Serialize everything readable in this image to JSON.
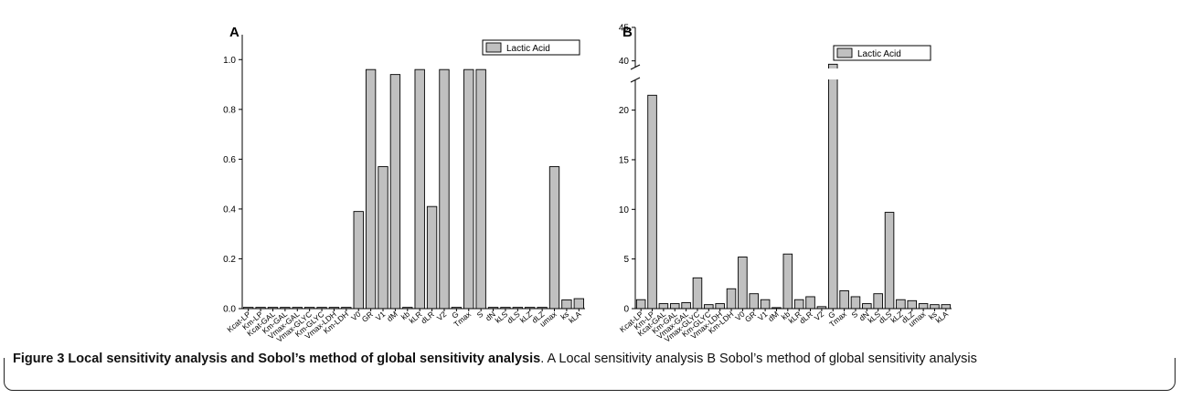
{
  "caption": {
    "title": "Figure 3 Local sensitivity analysis and Sobol’s method of global sensitivity analysis",
    "text": ". A Local sensitivity analysis B Sobol’s method of global sensitivity analysis"
  },
  "colors": {
    "bar": "#c0c0c0",
    "axis": "#000000"
  },
  "chart_data": [
    {
      "type": "bar",
      "panel_label": "A",
      "title": "",
      "xlabel": "",
      "ylabel": "",
      "ylim": [
        0,
        1.1
      ],
      "yticks": [
        "0.0",
        "0.2",
        "0.4",
        "0.6",
        "0.8",
        "1.0"
      ],
      "legend": "top-right",
      "categories": [
        "Kcat-LP",
        "Km-LP",
        "Kcat-GAL",
        "Km-GAL",
        "Vmax-GAL",
        "Vmax-GLYC",
        "Km-GLYC",
        "Vmax-LDH",
        "Km-LDH",
        "V0",
        "GR",
        "V1",
        "dM",
        "kb",
        "kLR",
        "dLR",
        "V2",
        "G",
        "Tmax",
        "S",
        "dN",
        "kLS",
        "dLS",
        "kLZ",
        "dLZ",
        "umax",
        "ks",
        "kLA"
      ],
      "series": [
        {
          "name": "Lactic Acid",
          "values": [
            0.005,
            0.005,
            0.005,
            0.005,
            0.005,
            0.005,
            0.005,
            0.005,
            0.005,
            0.39,
            0.96,
            0.57,
            0.94,
            0.005,
            0.96,
            0.41,
            0.96,
            0.005,
            0.96,
            0.96,
            0.005,
            0.005,
            0.005,
            0.005,
            0.005,
            0.57,
            0.035,
            0.04
          ]
        }
      ]
    },
    {
      "type": "bar",
      "panel_label": "B",
      "title": "",
      "xlabel": "",
      "ylabel": "",
      "ylim": [
        0,
        45
      ],
      "axis_break": [
        23,
        39
      ],
      "yticks": [
        "0",
        "5",
        "10",
        "15",
        "20",
        "40",
        "45"
      ],
      "legend": "top-right",
      "categories": [
        "Kcat-LP",
        "Km-LP",
        "Kcat-GAL",
        "Km-GAL",
        "Vmax-GAL",
        "Vmax-GLYC",
        "Km-GLYC",
        "Vmax-LDH",
        "Km-LDH",
        "V0",
        "GR",
        "V1",
        "dM",
        "kb",
        "kLR",
        "dLR",
        "V2",
        "G",
        "Tmax",
        "S",
        "dN",
        "kLS",
        "dLS",
        "kLZ",
        "dLZ",
        "umax",
        "ks",
        "kLA"
      ],
      "series": [
        {
          "name": "Lactic Acid",
          "values": [
            0.9,
            21.5,
            0.5,
            0.5,
            0.6,
            3.1,
            0.4,
            0.5,
            2.0,
            5.2,
            1.5,
            0.9,
            0.1,
            5.5,
            0.9,
            1.2,
            0.2,
            39.5,
            1.8,
            1.2,
            0.5,
            1.5,
            9.7,
            0.9,
            0.8,
            0.5,
            0.4,
            0.4
          ]
        }
      ]
    }
  ]
}
